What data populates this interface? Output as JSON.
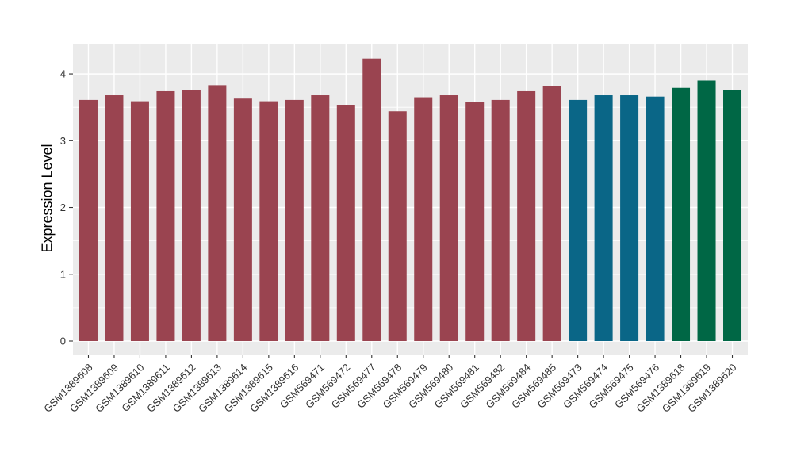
{
  "chart_data": {
    "type": "bar",
    "title": "",
    "xlabel": "",
    "ylabel": "Expression Level",
    "ylim": [
      0,
      4.44
    ],
    "yticks": [
      0,
      1,
      2,
      3,
      4
    ],
    "grid": "major and minor horizontal white gridlines, vertical white gridline at each category",
    "legend_position": "none",
    "panel_background": "#EBEBEB",
    "gridline_color": "#FFFFFF",
    "axis_text_color": "#333333",
    "palette": {
      "maroon": "#9A4450",
      "teal_blue": "#0A6687",
      "green": "#006745"
    },
    "categories": [
      "GSM1389608",
      "GSM1389609",
      "GSM1389610",
      "GSM1389611",
      "GSM1389612",
      "GSM1389613",
      "GSM1389614",
      "GSM1389615",
      "GSM1389616",
      "GSM569471",
      "GSM569472",
      "GSM569477",
      "GSM569478",
      "GSM569479",
      "GSM569480",
      "GSM569481",
      "GSM569482",
      "GSM569484",
      "GSM569485",
      "GSM569473",
      "GSM569474",
      "GSM569475",
      "GSM569476",
      "GSM1389618",
      "GSM1389619",
      "GSM1389620"
    ],
    "values": [
      3.61,
      3.68,
      3.59,
      3.74,
      3.76,
      3.83,
      3.63,
      3.59,
      3.61,
      3.68,
      3.53,
      4.23,
      3.44,
      3.65,
      3.68,
      3.58,
      3.61,
      3.74,
      3.82,
      3.61,
      3.68,
      3.68,
      3.66,
      3.79,
      3.9,
      3.76
    ],
    "colors": [
      "#9A4450",
      "#9A4450",
      "#9A4450",
      "#9A4450",
      "#9A4450",
      "#9A4450",
      "#9A4450",
      "#9A4450",
      "#9A4450",
      "#9A4450",
      "#9A4450",
      "#9A4450",
      "#9A4450",
      "#9A4450",
      "#9A4450",
      "#9A4450",
      "#9A4450",
      "#9A4450",
      "#9A4450",
      "#0A6687",
      "#0A6687",
      "#0A6687",
      "#0A6687",
      "#006745",
      "#006745",
      "#006745"
    ]
  }
}
